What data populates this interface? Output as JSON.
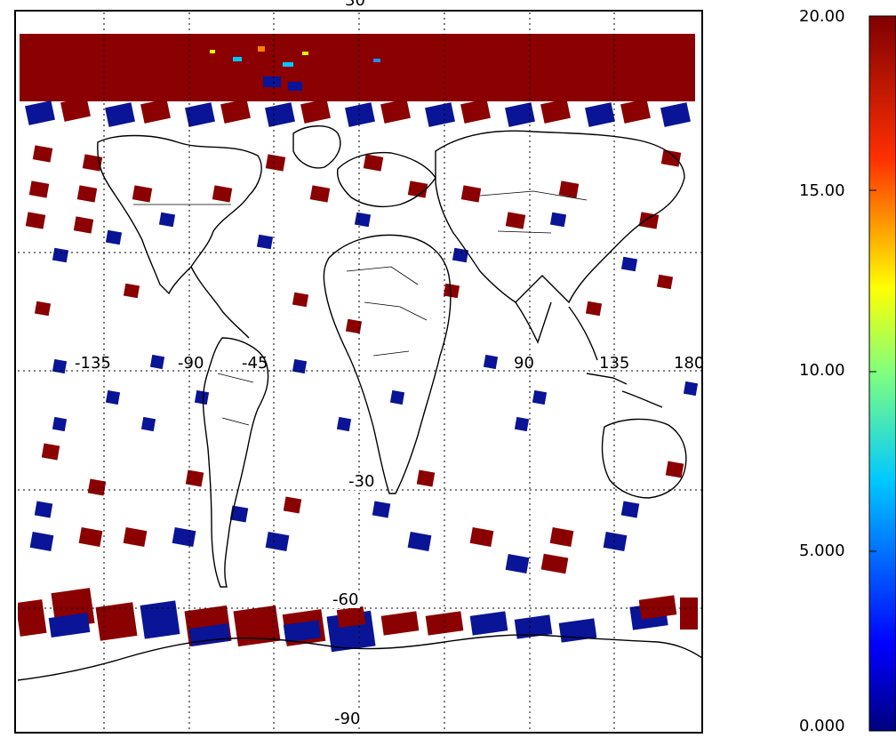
{
  "map": {
    "projection": "equirectangular",
    "latitude_labels": [
      "30",
      "-30",
      "-60",
      "-90"
    ],
    "longitude_labels": [
      "-135",
      "-90",
      "-45",
      "90",
      "135",
      "180"
    ],
    "gridlines": "dotted",
    "coastlines": true,
    "country_borders": true,
    "swath_colors": {
      "high": "#8b0000",
      "low": "#0a1496",
      "mid_speckle": [
        "#00c8ff",
        "#ffff00",
        "#ff7f00",
        "#1e90ff"
      ]
    }
  },
  "colorbar": {
    "orientation": "vertical",
    "placement": "right",
    "tick_labels": [
      "20.00",
      "15.00",
      "10.00",
      "5.000",
      "0.000"
    ],
    "range": [
      0,
      20
    ],
    "colormap": "rainbow (dark blue → cyan → yellow → red → dark red)"
  }
}
